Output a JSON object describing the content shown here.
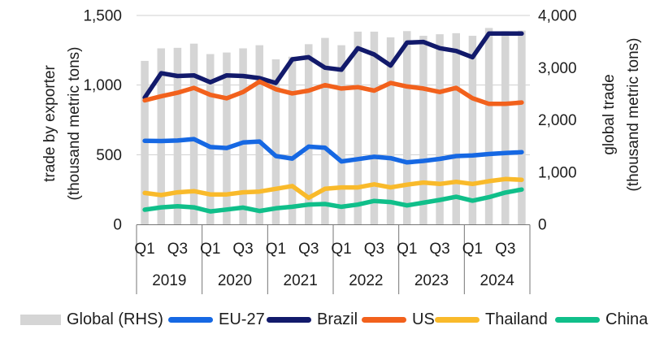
{
  "chart_data": {
    "type": "combo-bar-line",
    "title": "",
    "x_axis": {
      "years": [
        "2019",
        "2020",
        "2021",
        "2022",
        "2023",
        "2024"
      ],
      "quarters_per_year": 4,
      "quarter_tick_labels": [
        "Q1",
        "Q3"
      ]
    },
    "left_axis": {
      "title_line1": "trade by exporter",
      "title_line2": "(thousand metric tons)",
      "range": [
        0,
        1500
      ],
      "ticks": [
        {
          "value": 0,
          "label": "0"
        },
        {
          "value": 500,
          "label": "500"
        },
        {
          "value": 1000,
          "label": "1,000"
        },
        {
          "value": 1500,
          "label": "1,500"
        }
      ]
    },
    "right_axis": {
      "title_line1": "global trade",
      "title_line2": "(thousand metric tons)",
      "range": [
        0,
        4000
      ],
      "ticks": [
        {
          "value": 0,
          "label": "0"
        },
        {
          "value": 1000,
          "label": "1,000"
        },
        {
          "value": 2000,
          "label": "2,000"
        },
        {
          "value": 3000,
          "label": "3,000"
        },
        {
          "value": 4000,
          "label": "4,000"
        }
      ]
    },
    "gridlines_left_values": [
      500,
      1000,
      1500
    ],
    "bar_series": {
      "name": "Global (RHS)",
      "axis": "right",
      "color": "#d5d5d5",
      "values": [
        3130,
        3370,
        3380,
        3460,
        3260,
        3290,
        3370,
        3430,
        3160,
        3210,
        3450,
        3570,
        3430,
        3690,
        3690,
        3580,
        3700,
        3610,
        3640,
        3660,
        3610,
        3760,
        3700,
        3710
      ]
    },
    "line_series": [
      {
        "name": "EU-27",
        "axis": "left",
        "color": "#1668e3",
        "values": [
          600,
          598,
          602,
          612,
          555,
          548,
          588,
          595,
          490,
          472,
          558,
          550,
          452,
          468,
          485,
          475,
          445,
          455,
          470,
          490,
          495,
          505,
          512,
          518
        ]
      },
      {
        "name": "Brazil",
        "axis": "left",
        "color": "#121a6b",
        "values": [
          910,
          1085,
          1065,
          1070,
          1020,
          1070,
          1065,
          1050,
          1015,
          1185,
          1200,
          1125,
          1110,
          1265,
          1220,
          1140,
          1305,
          1310,
          1265,
          1245,
          1200,
          1370,
          1370,
          1370
        ]
      },
      {
        "name": "US",
        "axis": "left",
        "color": "#f2611c",
        "values": [
          890,
          920,
          945,
          980,
          930,
          905,
          950,
          1025,
          970,
          940,
          960,
          1000,
          975,
          985,
          960,
          1015,
          990,
          975,
          950,
          980,
          905,
          865,
          865,
          875
        ]
      },
      {
        "name": "Thailand",
        "axis": "left",
        "color": "#f9ba2b",
        "values": [
          225,
          210,
          230,
          238,
          215,
          215,
          230,
          235,
          255,
          275,
          190,
          255,
          265,
          265,
          287,
          265,
          285,
          300,
          290,
          305,
          290,
          310,
          325,
          320
        ]
      },
      {
        "name": "China",
        "axis": "left",
        "color": "#10bf8a",
        "values": [
          105,
          122,
          130,
          122,
          93,
          106,
          120,
          96,
          115,
          126,
          142,
          146,
          126,
          142,
          168,
          160,
          136,
          155,
          175,
          198,
          170,
          195,
          228,
          250
        ]
      }
    ],
    "legend": [
      {
        "label": "Global (RHS)",
        "swatch": "bar",
        "color": "#d5d5d5"
      },
      {
        "label": "EU-27",
        "swatch": "line",
        "color": "#1668e3"
      },
      {
        "label": "Brazil",
        "swatch": "line",
        "color": "#121a6b"
      },
      {
        "label": "US",
        "swatch": "line",
        "color": "#f2611c"
      },
      {
        "label": "Thailand",
        "swatch": "line",
        "color": "#f9ba2b"
      },
      {
        "label": "China",
        "swatch": "line",
        "color": "#10bf8a"
      }
    ],
    "colors": {
      "gridline": "#cfcfcf",
      "category_axis": "#767676",
      "text": "#1d1d1d"
    }
  }
}
